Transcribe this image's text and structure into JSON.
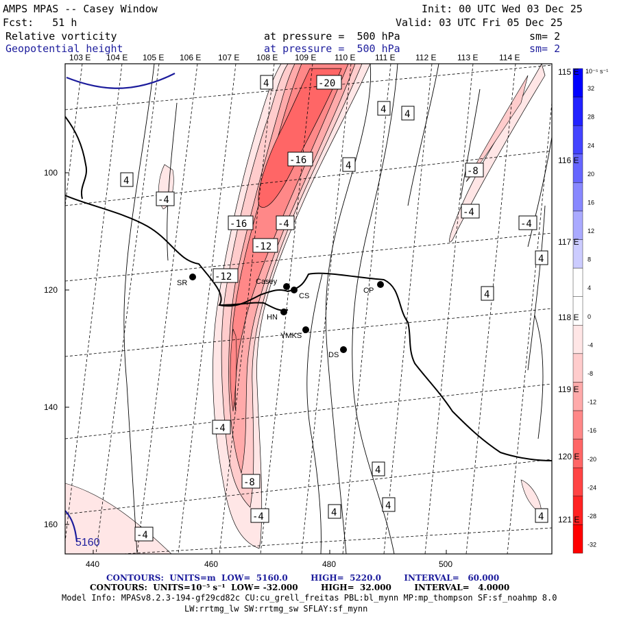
{
  "header": {
    "title": "AMPS MPAS -- Casey Window",
    "init": "Init: 00 UTC Wed 03 Dec 25",
    "fcst": "Fcst:   51 h",
    "valid": "Valid: 03 UTC Fri 05 Dec 25",
    "field1": "Relative vorticity",
    "field1_level": "at pressure =  500 hPa",
    "field1_sm": "sm= 2",
    "field2": "Geopotential height",
    "field2_level": "at pressure =  500 hPa",
    "field2_sm": "sm= 2"
  },
  "axes": {
    "top_lon_labels": [
      "103 E",
      "104 E",
      "105 E",
      "106 E",
      "107 E",
      "108 E",
      "109 E",
      "110 E",
      "111 E",
      "112 E",
      "113 E",
      "114 E"
    ],
    "right_lon_labels": [
      "115 E",
      "116 E",
      "117 E",
      "118 E",
      "119 E",
      "120 E",
      "121 E"
    ],
    "y_ticks": [
      "100",
      "120",
      "140",
      "160"
    ],
    "x_ticks": [
      "440",
      "460",
      "480",
      "500"
    ]
  },
  "colorbar": {
    "units": "10⁻⁵ s⁻¹",
    "labels": [
      "32",
      "28",
      "24",
      "20",
      "16",
      "12",
      "8",
      "4",
      "0",
      "-4",
      "-8",
      "-12",
      "-16",
      "-20",
      "-24",
      "-28",
      "-32"
    ],
    "colors": [
      "#0000ff",
      "#2222ff",
      "#4444ff",
      "#6666ff",
      "#8888ff",
      "#aaaaff",
      "#ccccff",
      "#ffffff",
      "#ffffff",
      "#ffe6e6",
      "#ffcccc",
      "#ffaaaa",
      "#ff8888",
      "#ff6666",
      "#ff4444",
      "#ff2222",
      "#ff0000"
    ]
  },
  "stations": [
    {
      "name": "SR"
    },
    {
      "name": "Casey"
    },
    {
      "name": "CS"
    },
    {
      "name": "CP"
    },
    {
      "name": "HN"
    },
    {
      "name": "YMKS"
    },
    {
      "name": "DS"
    }
  ],
  "contour_labels": [
    "4",
    "-20",
    "4",
    "4",
    "-16",
    "4",
    "-8",
    "4",
    "-4",
    "-4",
    "-16",
    "-4",
    "-4",
    "-12",
    "4",
    "-12",
    "4",
    "-4",
    "-8",
    "4",
    "4",
    "4",
    "-4",
    "4",
    "5160"
  ],
  "footer": {
    "line1": "CONTOURS:  UNITS=m  LOW=  5160.0        HIGH=  5220.0        INTERVAL=   60.000",
    "line2": "CONTOURS:  UNITS=10⁻⁵ s⁻¹  LOW= -32.000        HIGH=  32.000        INTERVAL=   4.0000",
    "line3": "Model Info: MPASv8.2.3-194-gf29cd82c CU:cu_grell_freitas PBL:bl_mynn MP:mp_thompson SF:sf_noahmp 8.0",
    "line4": "LW:rrtmg_lw SW:rrtmg_sw SFLAY:sf_mynn"
  }
}
